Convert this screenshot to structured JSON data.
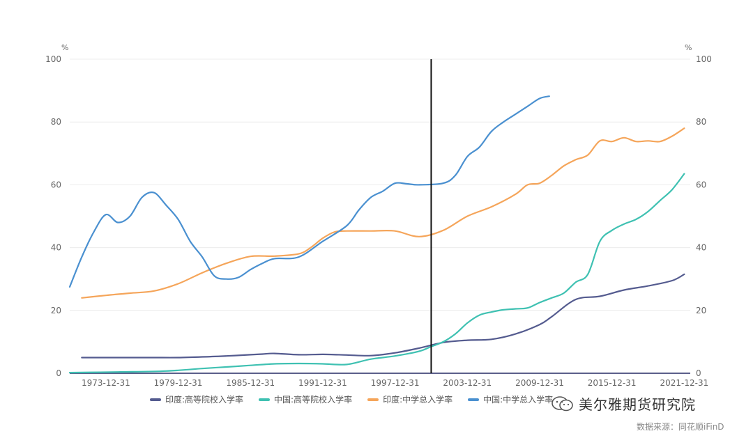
{
  "chart_data": {
    "type": "line",
    "y_unit_left": "%",
    "y_unit_right": "%",
    "ylim": [
      0,
      100
    ],
    "y_ticks": [
      0,
      20,
      40,
      60,
      80,
      100
    ],
    "x_tick_labels": [
      "1973-12-31",
      "1979-12-31",
      "1985-12-31",
      "1991-12-31",
      "1997-12-31",
      "2003-12-31",
      "2009-12-31",
      "2015-12-31",
      "2021-12-31"
    ],
    "xlim": [
      1971,
      2022.5
    ],
    "vertical_marker_x": 2001,
    "series": [
      {
        "name": "印度:高等院校入学率",
        "color": "#545b8f",
        "x": [
          1972,
          1974,
          1976,
          1978,
          1980,
          1982,
          1984,
          1986,
          1987,
          1988,
          1990,
          1992,
          1994,
          1996,
          1998,
          2000,
          2002,
          2004,
          2006,
          2008,
          2010,
          2011,
          2013,
          2015,
          2017,
          2019,
          2021,
          2022
        ],
        "y": [
          5.0,
          5.0,
          5.0,
          5.0,
          5.0,
          5.2,
          5.5,
          5.9,
          6.1,
          6.3,
          5.9,
          6.0,
          5.8,
          5.6,
          6.5,
          8.0,
          9.8,
          10.5,
          10.8,
          12.5,
          15.5,
          18.0,
          23.5,
          24.5,
          26.5,
          27.8,
          29.5,
          31.5
        ]
      },
      {
        "name": "中国:高等院校入学率",
        "color": "#3fc1b2",
        "x": [
          1971,
          1975,
          1979,
          1982,
          1984,
          1986,
          1988,
          1990,
          1992,
          1994,
          1996,
          1998,
          2000,
          2001,
          2002,
          2003,
          2004,
          2005,
          2006,
          2007,
          2008,
          2009,
          2010,
          2011,
          2012,
          2013,
          2014,
          2015,
          2016,
          2017,
          2018,
          2019,
          2020,
          2021,
          2022
        ],
        "y": [
          0.2,
          0.4,
          0.7,
          1.5,
          2.0,
          2.5,
          3.0,
          3.1,
          3.0,
          2.8,
          4.5,
          5.5,
          7.0,
          8.5,
          10.0,
          12.5,
          16.0,
          18.5,
          19.5,
          20.2,
          20.5,
          20.8,
          22.5,
          24.0,
          25.5,
          29.0,
          31.5,
          42.0,
          45.5,
          47.5,
          49.0,
          51.5,
          55.0,
          58.5,
          63.5
        ]
      },
      {
        "name": "印度:中学总入学率",
        "color": "#f5a55a",
        "x": [
          1972,
          1974,
          1976,
          1978,
          1980,
          1982,
          1984,
          1986,
          1988,
          1990,
          1991,
          1992,
          1993,
          1994,
          1996,
          1998,
          2000,
          2002,
          2004,
          2006,
          2008,
          2009,
          2010,
          2011,
          2012,
          2013,
          2014,
          2015,
          2016,
          2017,
          2018,
          2019,
          2020,
          2021,
          2022
        ],
        "y": [
          24.0,
          24.8,
          25.5,
          26.2,
          28.5,
          32.0,
          35.0,
          37.2,
          37.3,
          38.0,
          40.0,
          43.0,
          45.0,
          45.3,
          45.3,
          45.3,
          43.5,
          45.5,
          50.0,
          53.0,
          57.0,
          60.0,
          60.5,
          63.0,
          66.0,
          68.0,
          69.5,
          74.0,
          73.8,
          75.0,
          73.8,
          74.0,
          73.8,
          75.5,
          78.0
        ]
      },
      {
        "name": "中国:中学总入学率",
        "color": "#4a90d0",
        "x": [
          1971,
          1972,
          1973,
          1974,
          1975,
          1976,
          1977,
          1978,
          1979,
          1980,
          1981,
          1982,
          1983,
          1984,
          1985,
          1986,
          1987,
          1988,
          1990,
          1992,
          1994,
          1995,
          1996,
          1997,
          1998,
          1999,
          2000,
          2002,
          2003,
          2004,
          2005,
          2006,
          2007,
          2008,
          2009,
          2010,
          2010.8
        ],
        "y": [
          27.5,
          37.0,
          45.0,
          50.5,
          48.0,
          50.0,
          56.0,
          57.5,
          53.5,
          49.0,
          42.0,
          37.0,
          31.0,
          30.0,
          30.5,
          33.0,
          35.0,
          36.5,
          37.0,
          42.0,
          47.0,
          52.0,
          56.0,
          58.0,
          60.5,
          60.3,
          60.0,
          60.5,
          63.0,
          69.0,
          72.0,
          77.0,
          80.0,
          82.5,
          85.0,
          87.5,
          88.2
        ]
      }
    ]
  },
  "watermark": {
    "text": "美尔雅期货研究院"
  },
  "source": "数据来源：同花顺iFinD"
}
